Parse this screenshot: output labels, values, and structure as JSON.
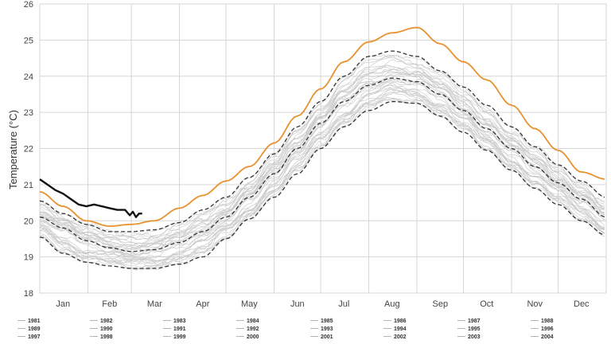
{
  "chart_data": {
    "type": "line",
    "title": "",
    "xlabel": "",
    "ylabel": "Temperature (°C)",
    "ylim": [
      18,
      26
    ],
    "yticks": [
      18,
      19,
      20,
      21,
      22,
      23,
      24,
      25,
      26
    ],
    "xlim": [
      1,
      366
    ],
    "grid": true,
    "legend_placement": "bottom",
    "months": [
      "Jan",
      "Feb",
      "Mar",
      "Apr",
      "May",
      "Jun",
      "Jul",
      "Aug",
      "Sep",
      "Oct",
      "Nov",
      "Dec"
    ],
    "month_label_day": [
      16,
      46,
      75,
      106,
      136,
      167,
      197,
      228,
      259,
      289,
      320,
      350
    ],
    "colors": {
      "historical_years": "#c8c8c8",
      "mean": "#333333",
      "bounds": "#333333",
      "max_year": "#e8912e",
      "current_year": "#111111",
      "grid": "#d6d6d6"
    },
    "legend_entries": [
      "1981",
      "1982",
      "1983",
      "1984",
      "1985",
      "1986",
      "1987",
      "1988",
      "1989",
      "1990",
      "1991",
      "1992",
      "1993",
      "1994",
      "1995",
      "1996",
      "1997",
      "1998",
      "1999",
      "2000",
      "2001",
      "2002",
      "2003",
      "2004"
    ],
    "series": [
      {
        "role": "mean",
        "style": "dashed",
        "x": [
          1,
          16,
          31,
          46,
          60,
          75,
          91,
          106,
          121,
          136,
          152,
          167,
          182,
          197,
          213,
          228,
          244,
          259,
          274,
          289,
          305,
          320,
          335,
          350,
          366
        ],
        "y": [
          20.1,
          19.8,
          19.45,
          19.25,
          19.15,
          19.2,
          19.4,
          19.7,
          20.1,
          20.65,
          21.3,
          22.0,
          22.7,
          23.3,
          23.75,
          23.95,
          23.85,
          23.5,
          23.05,
          22.55,
          22.0,
          21.5,
          21.05,
          20.6,
          20.1
        ]
      },
      {
        "role": "upper_bound",
        "style": "dashed",
        "x": [
          1,
          16,
          31,
          46,
          60,
          75,
          91,
          106,
          121,
          136,
          152,
          167,
          182,
          197,
          213,
          228,
          244,
          259,
          274,
          289,
          305,
          320,
          335,
          350,
          366
        ],
        "y": [
          20.55,
          20.2,
          19.9,
          19.7,
          19.7,
          19.75,
          19.95,
          20.3,
          20.65,
          21.2,
          21.85,
          22.6,
          23.3,
          24.0,
          24.55,
          24.7,
          24.55,
          24.15,
          23.7,
          23.2,
          22.6,
          22.05,
          21.55,
          21.1,
          20.65
        ]
      },
      {
        "role": "lower_bound",
        "style": "dashed",
        "x": [
          1,
          16,
          31,
          46,
          60,
          75,
          91,
          106,
          121,
          136,
          152,
          167,
          182,
          197,
          213,
          228,
          244,
          259,
          274,
          289,
          305,
          320,
          335,
          350,
          366
        ],
        "y": [
          19.55,
          19.1,
          18.85,
          18.75,
          18.68,
          18.68,
          18.8,
          19.0,
          19.5,
          20.05,
          20.65,
          21.3,
          22.0,
          22.6,
          23.05,
          23.3,
          23.25,
          22.9,
          22.45,
          21.95,
          21.4,
          20.9,
          20.45,
          20.0,
          19.6
        ]
      },
      {
        "role": "max_year",
        "style": "solid",
        "x": [
          1,
          16,
          31,
          46,
          60,
          75,
          91,
          106,
          121,
          136,
          152,
          167,
          182,
          197,
          213,
          228,
          244,
          259,
          274,
          289,
          305,
          320,
          335,
          350,
          366
        ],
        "y": [
          20.8,
          20.4,
          20.0,
          19.85,
          19.9,
          20.0,
          20.35,
          20.7,
          21.1,
          21.5,
          22.15,
          22.9,
          23.65,
          24.4,
          24.95,
          25.2,
          25.35,
          24.9,
          24.4,
          23.9,
          23.2,
          22.55,
          21.95,
          21.35,
          21.15
        ]
      },
      {
        "role": "current_year",
        "style": "solid",
        "x": [
          1,
          6,
          11,
          16,
          21,
          26,
          31,
          36,
          41,
          46,
          51,
          56,
          59,
          61,
          63,
          65,
          67
        ],
        "y": [
          21.15,
          21.0,
          20.85,
          20.75,
          20.6,
          20.45,
          20.4,
          20.45,
          20.4,
          20.35,
          20.3,
          20.3,
          20.15,
          20.25,
          20.1,
          20.2,
          20.2
        ]
      }
    ]
  }
}
